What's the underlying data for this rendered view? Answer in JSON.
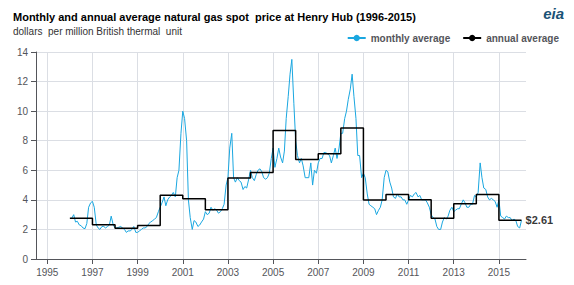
{
  "chart_data": {
    "type": "line",
    "title": "Monthly and annual average natural gas spot  price at Henry Hub (1996-2015)",
    "subtitle": "dollars  per million British thermal  unit",
    "xlim": [
      1994.5,
      2016.2
    ],
    "xticks": [
      1995,
      1997,
      1999,
      2001,
      2003,
      2005,
      2007,
      2009,
      2011,
      2013,
      2015
    ],
    "ylim": [
      0,
      14
    ],
    "yticks": [
      0,
      2,
      4,
      6,
      8,
      10,
      12,
      14
    ],
    "grid": true,
    "legend": "upper right",
    "series": [
      {
        "name": "monthly average",
        "color": "#1aa7e0",
        "x": [
          1996.08,
          1996.17,
          1996.25,
          1996.33,
          1996.42,
          1996.5,
          1996.58,
          1996.67,
          1996.75,
          1996.83,
          1996.92,
          1997.0,
          1997.08,
          1997.17,
          1997.25,
          1997.33,
          1997.42,
          1997.5,
          1997.58,
          1997.67,
          1997.75,
          1997.83,
          1997.92,
          1998.0,
          1998.08,
          1998.17,
          1998.25,
          1998.33,
          1998.42,
          1998.5,
          1998.58,
          1998.67,
          1998.75,
          1998.83,
          1998.92,
          1999.0,
          1999.08,
          1999.17,
          1999.25,
          1999.33,
          1999.42,
          1999.5,
          1999.58,
          1999.67,
          1999.75,
          1999.83,
          1999.92,
          2000.0,
          2000.08,
          2000.17,
          2000.25,
          2000.33,
          2000.42,
          2000.5,
          2000.58,
          2000.67,
          2000.75,
          2000.83,
          2000.92,
          2001.0,
          2001.08,
          2001.17,
          2001.25,
          2001.33,
          2001.42,
          2001.5,
          2001.58,
          2001.67,
          2001.75,
          2001.83,
          2001.92,
          2002.0,
          2002.08,
          2002.17,
          2002.25,
          2002.33,
          2002.42,
          2002.5,
          2002.58,
          2002.67,
          2002.75,
          2002.83,
          2002.92,
          2003.0,
          2003.08,
          2003.17,
          2003.25,
          2003.33,
          2003.42,
          2003.5,
          2003.58,
          2003.67,
          2003.75,
          2003.83,
          2003.92,
          2004.0,
          2004.08,
          2004.17,
          2004.25,
          2004.33,
          2004.42,
          2004.5,
          2004.58,
          2004.67,
          2004.75,
          2004.83,
          2004.92,
          2005.0,
          2005.08,
          2005.17,
          2005.25,
          2005.33,
          2005.42,
          2005.5,
          2005.58,
          2005.67,
          2005.75,
          2005.83,
          2005.92,
          2006.0,
          2006.08,
          2006.17,
          2006.25,
          2006.33,
          2006.42,
          2006.5,
          2006.58,
          2006.67,
          2006.75,
          2006.83,
          2006.92,
          2007.0,
          2007.08,
          2007.17,
          2007.25,
          2007.33,
          2007.42,
          2007.5,
          2007.58,
          2007.67,
          2007.75,
          2007.83,
          2007.92,
          2008.0,
          2008.08,
          2008.17,
          2008.25,
          2008.33,
          2008.42,
          2008.5,
          2008.58,
          2008.67,
          2008.75,
          2008.83,
          2008.92,
          2009.0,
          2009.08,
          2009.17,
          2009.25,
          2009.33,
          2009.42,
          2009.5,
          2009.58,
          2009.67,
          2009.75,
          2009.83,
          2009.92,
          2010.0,
          2010.08,
          2010.17,
          2010.25,
          2010.33,
          2010.42,
          2010.5,
          2010.58,
          2010.67,
          2010.75,
          2010.83,
          2010.92,
          2011.0,
          2011.08,
          2011.17,
          2011.25,
          2011.33,
          2011.42,
          2011.5,
          2011.58,
          2011.67,
          2011.75,
          2011.83,
          2011.92,
          2012.0,
          2012.08,
          2012.17,
          2012.25,
          2012.33,
          2012.42,
          2012.5,
          2012.58,
          2012.67,
          2012.75,
          2012.83,
          2012.92,
          2013.0,
          2013.08,
          2013.17,
          2013.25,
          2013.33,
          2013.42,
          2013.5,
          2013.58,
          2013.67,
          2013.75,
          2013.83,
          2013.92,
          2014.0,
          2014.08,
          2014.17,
          2014.25,
          2014.33,
          2014.42,
          2014.5,
          2014.58,
          2014.67,
          2014.75,
          2014.83,
          2014.92,
          2015.0,
          2015.08,
          2015.17,
          2015.25,
          2015.33,
          2015.42,
          2015.5,
          2015.58,
          2015.67,
          2015.75,
          2015.83,
          2015.92,
          2016.0
        ],
        "values": [
          2.75,
          3.0,
          2.5,
          2.55,
          2.3,
          2.25,
          2.1,
          2.05,
          2.4,
          3.5,
          3.8,
          3.9,
          3.5,
          2.3,
          2.1,
          2.0,
          2.2,
          2.2,
          2.1,
          2.2,
          2.3,
          2.9,
          2.3,
          2.1,
          2.1,
          2.15,
          2.2,
          2.1,
          2.0,
          1.8,
          1.9,
          1.9,
          2.0,
          2.2,
          1.8,
          1.8,
          1.9,
          2.0,
          2.1,
          2.1,
          2.2,
          2.4,
          2.5,
          2.6,
          2.7,
          2.8,
          3.2,
          3.5,
          3.8,
          4.2,
          3.6,
          4.0,
          4.2,
          4.3,
          4.5,
          4.2,
          5.5,
          6.0,
          8.5,
          10.0,
          9.5,
          8.0,
          4.0,
          2.8,
          2.0,
          2.6,
          2.5,
          2.2,
          2.3,
          2.5,
          2.7,
          3.2,
          3.0,
          3.1,
          3.5,
          3.3,
          3.4,
          3.3,
          3.1,
          3.2,
          3.4,
          3.7,
          5.0,
          5.5,
          7.5,
          8.5,
          5.5,
          5.2,
          5.5,
          5.3,
          5.2,
          4.7,
          4.9,
          4.8,
          5.4,
          6.0,
          5.5,
          5.3,
          5.7,
          6.0,
          6.1,
          5.9,
          5.5,
          5.4,
          5.5,
          5.8,
          6.8,
          7.5,
          6.2,
          6.8,
          7.5,
          6.9,
          6.5,
          7.3,
          9.5,
          11.0,
          12.5,
          13.5,
          10.5,
          8.0,
          7.0,
          6.5,
          6.8,
          6.3,
          5.5,
          5.5,
          5.5,
          6.5,
          5.0,
          6.0,
          5.8,
          6.5,
          6.8,
          6.8,
          7.2,
          7.2,
          7.1,
          7.0,
          6.5,
          7.0,
          7.5,
          6.8,
          7.5,
          8.5,
          8.5,
          9.5,
          10.0,
          10.8,
          11.5,
          12.5,
          11.0,
          9.5,
          7.0,
          7.0,
          5.5,
          5.8,
          5.5,
          4.4,
          3.7,
          3.6,
          3.5,
          3.4,
          3.0,
          3.3,
          3.5,
          4.0,
          5.5,
          6.0,
          5.9,
          5.2,
          4.8,
          4.2,
          4.1,
          4.4,
          4.2,
          4.2,
          4.0,
          4.0,
          3.7,
          4.0,
          4.3,
          4.2,
          4.4,
          4.5,
          4.2,
          4.3,
          4.0,
          4.0,
          4.0,
          3.8,
          3.5,
          3.0,
          2.8,
          2.7,
          2.2,
          2.0,
          2.0,
          2.5,
          2.8,
          2.7,
          2.9,
          3.3,
          3.5,
          3.2,
          3.3,
          3.4,
          3.4,
          3.7,
          4.0,
          3.8,
          3.5,
          3.5,
          3.7,
          3.7,
          4.3,
          4.2,
          4.5,
          6.5,
          5.5,
          4.8,
          4.7,
          4.2,
          4.0,
          4.1,
          4.0,
          3.9,
          3.5,
          4.0,
          2.9,
          2.8,
          2.7,
          2.9,
          2.8,
          2.8,
          2.6,
          2.7,
          2.6,
          2.2,
          2.1,
          2.61
        ]
      },
      {
        "name": "annual average",
        "type": "step",
        "color": "#000000",
        "x": [
          1996,
          1997,
          1998,
          1999,
          2000,
          2001,
          2002,
          2003,
          2004,
          2005,
          2006,
          2007,
          2008,
          2009,
          2010,
          2011,
          2012,
          2013,
          2014,
          2015
        ],
        "values": [
          2.76,
          2.32,
          2.08,
          2.27,
          4.32,
          4.07,
          3.33,
          5.47,
          5.85,
          8.69,
          6.73,
          7.12,
          8.86,
          3.99,
          4.37,
          4.0,
          2.76,
          3.73,
          4.37,
          2.62
        ]
      }
    ],
    "annotations": [
      {
        "text": "$2.61",
        "x": 2016.05,
        "y": 2.61,
        "color": "#000000"
      },
      {
        "text": "eia",
        "color": "#1a5276"
      }
    ]
  }
}
